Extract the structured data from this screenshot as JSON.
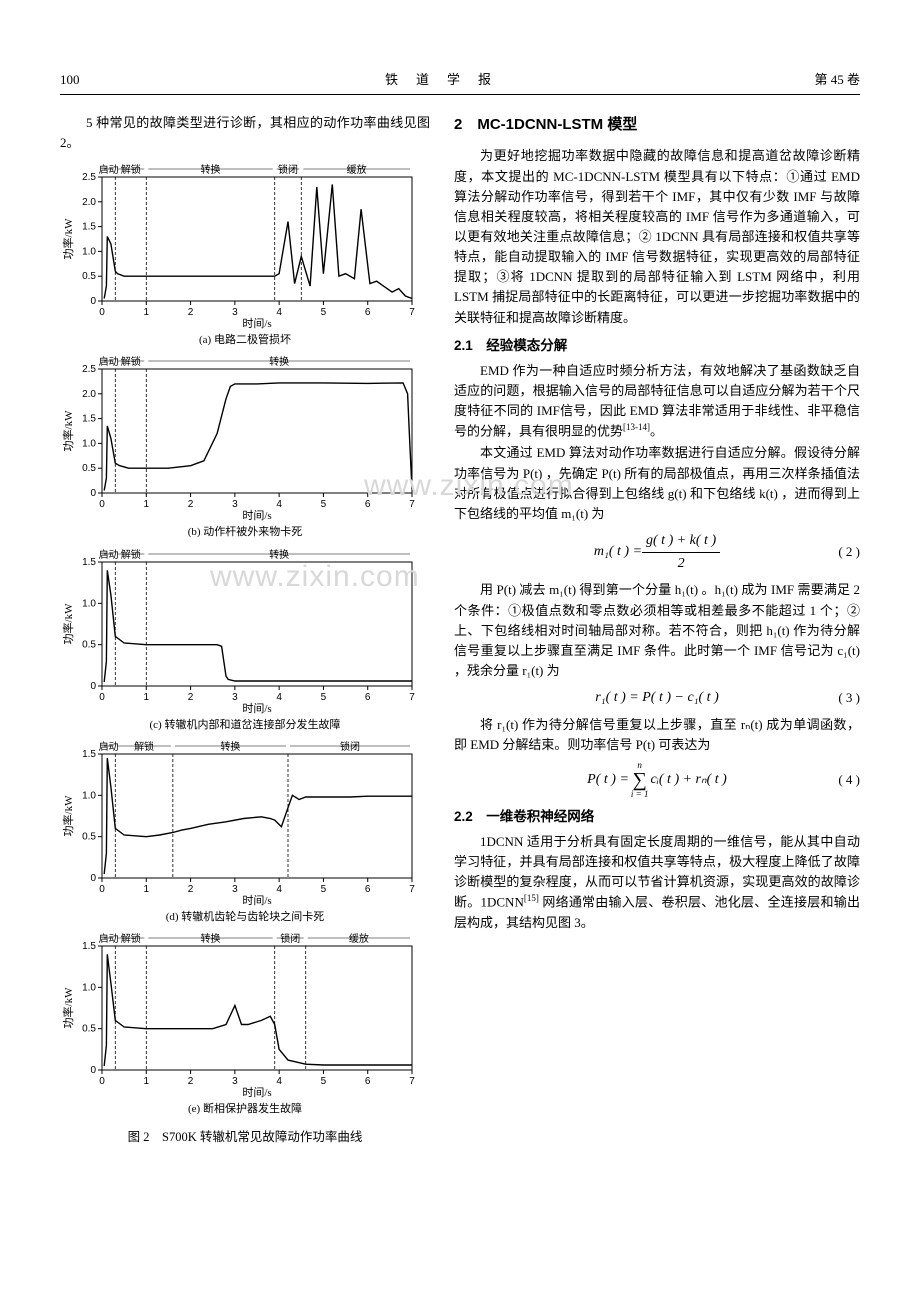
{
  "header": {
    "page_no": "100",
    "journal": "铁道学报",
    "volume": "第 45 卷"
  },
  "intro": "5 种常见的故障类型进行诊断，其相应的动作功率曲线见图 2。",
  "figure": {
    "caption": "图 2　S700K 转辙机常见故障动作功率曲线",
    "ylabel": "功率/kW",
    "xlabel": "时间/s",
    "phase_labels": [
      "启动",
      "解锁",
      "转换",
      "锁闭",
      "缓放"
    ],
    "axis": {
      "line_color": "#000000",
      "line_width": 1,
      "tick_font_size": 10,
      "label_font_size": 11,
      "grid_dash": "3,2",
      "grid_color": "#000000",
      "background": "#ffffff"
    },
    "charts": [
      {
        "id": "a",
        "sub": "(a) 电路二极管损坏",
        "xlim": [
          0,
          7
        ],
        "ylim": [
          0,
          2.5
        ],
        "xtick_step": 1,
        "ytick_step": 0.5,
        "phase_x": [
          0,
          0.3,
          1.0,
          3.9,
          4.5,
          7.0
        ],
        "show_all_phases": true,
        "series": [
          [
            0.05,
            0.05
          ],
          [
            0.1,
            0.3
          ],
          [
            0.12,
            1.3
          ],
          [
            0.2,
            1.15
          ],
          [
            0.3,
            0.6
          ],
          [
            0.35,
            0.55
          ],
          [
            0.5,
            0.5
          ],
          [
            1.0,
            0.5
          ],
          [
            2.0,
            0.5
          ],
          [
            3.0,
            0.5
          ],
          [
            3.9,
            0.5
          ],
          [
            4.0,
            0.55
          ],
          [
            4.2,
            1.6
          ],
          [
            4.35,
            0.35
          ],
          [
            4.5,
            0.9
          ],
          [
            4.7,
            0.3
          ],
          [
            4.85,
            2.3
          ],
          [
            5.0,
            0.55
          ],
          [
            5.2,
            2.35
          ],
          [
            5.35,
            0.5
          ],
          [
            5.5,
            0.55
          ],
          [
            5.7,
            0.45
          ],
          [
            5.85,
            1.85
          ],
          [
            6.05,
            0.35
          ],
          [
            6.2,
            0.4
          ],
          [
            6.55,
            0.18
          ],
          [
            6.7,
            0.25
          ],
          [
            6.85,
            0.1
          ],
          [
            7.0,
            0.05
          ]
        ]
      },
      {
        "id": "b",
        "sub": "(b) 动作杆被外来物卡死",
        "xlim": [
          0,
          7
        ],
        "ylim": [
          0,
          2.5
        ],
        "xtick_step": 1,
        "ytick_step": 0.5,
        "phase_x": [
          0,
          0.3,
          1.0,
          7.0
        ],
        "show_all_phases": false,
        "phase_subset": [
          0,
          1,
          2
        ],
        "series": [
          [
            0.05,
            0.05
          ],
          [
            0.1,
            0.3
          ],
          [
            0.12,
            1.35
          ],
          [
            0.2,
            1.1
          ],
          [
            0.3,
            0.6
          ],
          [
            0.4,
            0.55
          ],
          [
            0.6,
            0.5
          ],
          [
            1.0,
            0.5
          ],
          [
            1.5,
            0.5
          ],
          [
            2.0,
            0.55
          ],
          [
            2.3,
            0.65
          ],
          [
            2.6,
            1.2
          ],
          [
            2.8,
            1.9
          ],
          [
            2.9,
            2.15
          ],
          [
            3.0,
            2.2
          ],
          [
            3.5,
            2.2
          ],
          [
            4.0,
            2.22
          ],
          [
            5.0,
            2.22
          ],
          [
            6.0,
            2.21
          ],
          [
            6.8,
            2.22
          ],
          [
            6.9,
            2.0
          ],
          [
            6.95,
            1.0
          ],
          [
            7.0,
            0.08
          ]
        ]
      },
      {
        "id": "c",
        "sub": "(c) 转辙机内部和道岔连接部分发生故障",
        "xlim": [
          0,
          7
        ],
        "ylim": [
          0,
          1.5
        ],
        "xtick_step": 1,
        "ytick_step": 0.5,
        "phase_x": [
          0,
          0.3,
          1.0,
          7.0
        ],
        "show_all_phases": false,
        "phase_subset": [
          0,
          1,
          2
        ],
        "series": [
          [
            0.05,
            0.05
          ],
          [
            0.1,
            0.3
          ],
          [
            0.12,
            1.4
          ],
          [
            0.2,
            1.1
          ],
          [
            0.3,
            0.6
          ],
          [
            0.5,
            0.52
          ],
          [
            1.0,
            0.5
          ],
          [
            2.0,
            0.5
          ],
          [
            2.6,
            0.5
          ],
          [
            2.7,
            0.48
          ],
          [
            2.75,
            0.3
          ],
          [
            2.8,
            0.12
          ],
          [
            2.85,
            0.08
          ],
          [
            3.0,
            0.06
          ],
          [
            4.0,
            0.06
          ],
          [
            5.0,
            0.06
          ],
          [
            6.0,
            0.06
          ],
          [
            7.0,
            0.06
          ]
        ]
      },
      {
        "id": "d",
        "sub": "(d) 转辙机齿轮与齿轮块之间卡死",
        "xlim": [
          0,
          7
        ],
        "ylim": [
          0,
          1.5
        ],
        "xtick_step": 1,
        "ytick_step": 0.5,
        "phase_x": [
          0,
          0.3,
          1.6,
          4.2,
          7.0
        ],
        "show_all_phases": false,
        "phase_subset": [
          0,
          1,
          2,
          3
        ],
        "series": [
          [
            0.05,
            0.05
          ],
          [
            0.1,
            0.3
          ],
          [
            0.12,
            1.45
          ],
          [
            0.2,
            1.1
          ],
          [
            0.3,
            0.6
          ],
          [
            0.5,
            0.52
          ],
          [
            1.0,
            0.5
          ],
          [
            1.3,
            0.52
          ],
          [
            1.6,
            0.55
          ],
          [
            1.8,
            0.58
          ],
          [
            2.0,
            0.6
          ],
          [
            2.4,
            0.65
          ],
          [
            2.8,
            0.68
          ],
          [
            3.2,
            0.72
          ],
          [
            3.6,
            0.74
          ],
          [
            3.8,
            0.72
          ],
          [
            3.9,
            0.7
          ],
          [
            4.05,
            0.62
          ],
          [
            4.2,
            0.85
          ],
          [
            4.3,
            1.0
          ],
          [
            4.45,
            0.95
          ],
          [
            4.6,
            0.98
          ],
          [
            4.8,
            0.98
          ],
          [
            5.2,
            0.98
          ],
          [
            5.6,
            0.98
          ],
          [
            6.0,
            0.99
          ],
          [
            6.5,
            0.99
          ],
          [
            6.8,
            0.99
          ],
          [
            7.0,
            0.99
          ]
        ]
      },
      {
        "id": "e",
        "sub": "(e) 断相保护器发生故障",
        "xlim": [
          0,
          7
        ],
        "ylim": [
          0,
          1.5
        ],
        "xtick_step": 1,
        "ytick_step": 0.5,
        "phase_x": [
          0,
          0.3,
          1.0,
          3.9,
          4.6,
          7.0
        ],
        "show_all_phases": true,
        "series": [
          [
            0.05,
            0.05
          ],
          [
            0.1,
            0.3
          ],
          [
            0.12,
            1.4
          ],
          [
            0.2,
            1.05
          ],
          [
            0.3,
            0.6
          ],
          [
            0.5,
            0.52
          ],
          [
            1.0,
            0.5
          ],
          [
            1.5,
            0.5
          ],
          [
            2.0,
            0.5
          ],
          [
            2.5,
            0.5
          ],
          [
            2.8,
            0.55
          ],
          [
            3.0,
            0.78
          ],
          [
            3.15,
            0.55
          ],
          [
            3.3,
            0.55
          ],
          [
            3.6,
            0.6
          ],
          [
            3.8,
            0.65
          ],
          [
            3.9,
            0.55
          ],
          [
            4.0,
            0.25
          ],
          [
            4.2,
            0.12
          ],
          [
            4.6,
            0.07
          ],
          [
            5.0,
            0.06
          ],
          [
            6.0,
            0.06
          ],
          [
            7.0,
            0.06
          ]
        ]
      }
    ]
  },
  "section2": {
    "heading": "2　MC-1DCNN-LSTM 模型",
    "p1": "为更好地挖掘功率数据中隐藏的故障信息和提高道岔故障诊断精度，本文提出的 MC-1DCNN-LSTM 模型具有以下特点：①通过 EMD 算法分解动作功率信号，得到若干个 IMF，其中仅有少数 IMF 与故障信息相关程度较高，将相关程度较高的 IMF 信号作为多通道输入，可以更有效地关注重点故障信息；② 1DCNN 具有局部连接和权值共享等特点，能自动提取输入的 IMF 信号数据特征，实现更高效的局部特征提取；③将 1DCNN 提取到的局部特征输入到 LSTM 网络中，利用 LSTM 捕捉局部特征中的长距离特征，可以更进一步挖掘功率数据中的关联特征和提高故障诊断精度。",
    "sub21": "2.1　经验模态分解",
    "p21a": "EMD 作为一种自适应时频分析方法，有效地解决了基函数缺乏自适应的问题，根据输入信号的局部特征信息可以自适应分解为若干个尺度特征不同的 IMF信号，因此 EMD 算法非常适用于非线性、非平稳信号的分解，具有很明显的优势",
    "p21a_ref": "[13-14]",
    "p21a_tail": "。",
    "p21b": "本文通过 EMD 算法对动作功率数据进行自适应分解。假设待分解功率信号为 P(t) ，先确定 P(t) 所有的局部极值点，再用三次样条插值法对所有极值点进行拟合得到上包络线 g(t) 和下包络线 k(t) ，进而得到上下包络线的平均值 m₁(t) 为",
    "eq2": {
      "lhs": "m₁( t ) =",
      "num": "g( t )  +  k( t )",
      "den": "2",
      "num_label": "( 2 )"
    },
    "p21c": "用 P(t) 减去 m₁(t) 得到第一个分量 h₁(t) 。h₁(t) 成为 IMF 需要满足 2 个条件：①极值点数和零点数必须相等或相差最多不能超过 1 个；②上、下包络线相对时间轴局部对称。若不符合，则把 h₁(t) 作为待分解信号重复以上步骤直至满足 IMF 条件。此时第一个 IMF 信号记为 c₁(t) ，残余分量 r₁(t) 为",
    "eq3": {
      "text": "r₁( t ) = P( t )  −  c₁( t )",
      "num_label": "( 3 )"
    },
    "p21d": "将 r₁(t) 作为待分解信号重复以上步骤，直至 rₙ(t) 成为单调函数，即 EMD 分解结束。则功率信号 P(t) 可表达为",
    "eq4": {
      "lhs": "P( t )  =  ",
      "sum_top": "n",
      "sum_bot": "i = 1",
      "rhs": " cᵢ( t )  +  rₙ( t )",
      "num_label": "( 4 )"
    },
    "sub22": "2.2　一维卷积神经网络",
    "p22": "1DCNN 适用于分析具有固定长度周期的一维信号，能从其中自动学习特征，并具有局部连接和权值共享等特点，极大程度上降低了故障诊断模型的复杂程度，从而可以节省计算机资源，实现更高效的故障诊断。1DCNN",
    "p22_ref": "[15]",
    "p22_tail": " 网络通常由输入层、卷积层、池化层、全连接层和输出层构成，其结构见图 3。"
  },
  "watermark": "www.zixin.com"
}
